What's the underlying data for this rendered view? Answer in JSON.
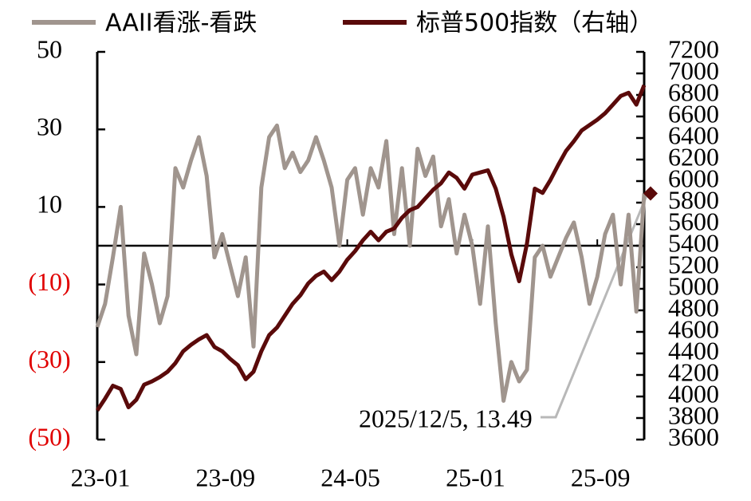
{
  "chart_data": {
    "type": "line",
    "legend": "top",
    "x": [
      0,
      0.5,
      1,
      1.5,
      2,
      2.5,
      3,
      3.5,
      4,
      4.5,
      5,
      5.5,
      6,
      6.5,
      7,
      7.5,
      8,
      8.5,
      9,
      9.5,
      10,
      10.5,
      11,
      11.5,
      12,
      12.5,
      13,
      13.5,
      14,
      14.5,
      15,
      15.5,
      16,
      16.5,
      17,
      17.5,
      18,
      18.5,
      19,
      19.5,
      20,
      20.5,
      21,
      21.5,
      22,
      22.5,
      23,
      23.5,
      24,
      24.5,
      25,
      25.5,
      26,
      26.5,
      27,
      27.5,
      28,
      28.5,
      29,
      29.5,
      30,
      30.5,
      31,
      31.5,
      32,
      32.5,
      33,
      33.5,
      34,
      34.5,
      35
    ],
    "xlim": [
      0,
      35
    ],
    "xticks": [
      {
        "value": 0,
        "label": "23-01"
      },
      {
        "value": 8,
        "label": "23-09"
      },
      {
        "value": 16,
        "label": "24-05"
      },
      {
        "value": 24,
        "label": "25-01"
      },
      {
        "value": 32,
        "label": "25-09"
      }
    ],
    "ylim": [
      -50,
      50
    ],
    "yticks": [
      {
        "value": -50,
        "label": "(50)"
      },
      {
        "value": -30,
        "label": "(30)"
      },
      {
        "value": -10,
        "label": "(10)"
      },
      10,
      30,
      50
    ],
    "negative_tick_color": "#e00000",
    "y2lim": [
      3600,
      7200
    ],
    "y2ticks": [
      3600,
      3800,
      4000,
      4200,
      4400,
      4600,
      4800,
      5000,
      5200,
      5400,
      5600,
      5800,
      6000,
      6200,
      6400,
      6600,
      6800,
      7000,
      7200
    ],
    "series": [
      {
        "name": "AAII看涨-看跌",
        "color": "#a0958e",
        "values": [
          -21,
          -15,
          -3,
          10,
          -18,
          -28,
          -2,
          -10,
          -20,
          -13,
          20,
          15,
          22,
          28,
          18,
          -3,
          3,
          -5,
          -13,
          -3,
          -26,
          15,
          28,
          31,
          20,
          24,
          19,
          22,
          28,
          22,
          15,
          0,
          17,
          20,
          8,
          20,
          15,
          27,
          3,
          20,
          0,
          25,
          18,
          23,
          5,
          12,
          -2,
          8,
          0,
          -15,
          5,
          -20,
          -40,
          -30,
          -35,
          -32,
          -3,
          0,
          -8,
          -3,
          2,
          6,
          -3,
          -15,
          -8,
          3,
          8,
          -10,
          8,
          -17,
          13.49
        ]
      },
      {
        "name": "标普500指数（右轴）",
        "color": "#5a0a0a",
        "axis": "y2",
        "values": [
          3870,
          3980,
          4100,
          4070,
          3900,
          3970,
          4110,
          4140,
          4180,
          4230,
          4310,
          4420,
          4480,
          4530,
          4570,
          4460,
          4420,
          4350,
          4290,
          4160,
          4230,
          4420,
          4570,
          4640,
          4750,
          4860,
          4940,
          5050,
          5120,
          5160,
          5080,
          5160,
          5270,
          5350,
          5450,
          5530,
          5450,
          5530,
          5560,
          5660,
          5730,
          5760,
          5840,
          5920,
          5980,
          6080,
          6030,
          5930,
          6060,
          6080,
          6100,
          5930,
          5670,
          5320,
          5070,
          5420,
          5930,
          5890,
          6010,
          6150,
          6280,
          6370,
          6470,
          6520,
          6570,
          6630,
          6710,
          6790,
          6820,
          6710,
          6890
        ]
      }
    ],
    "annotation": "2025/12/5, 13.49"
  }
}
